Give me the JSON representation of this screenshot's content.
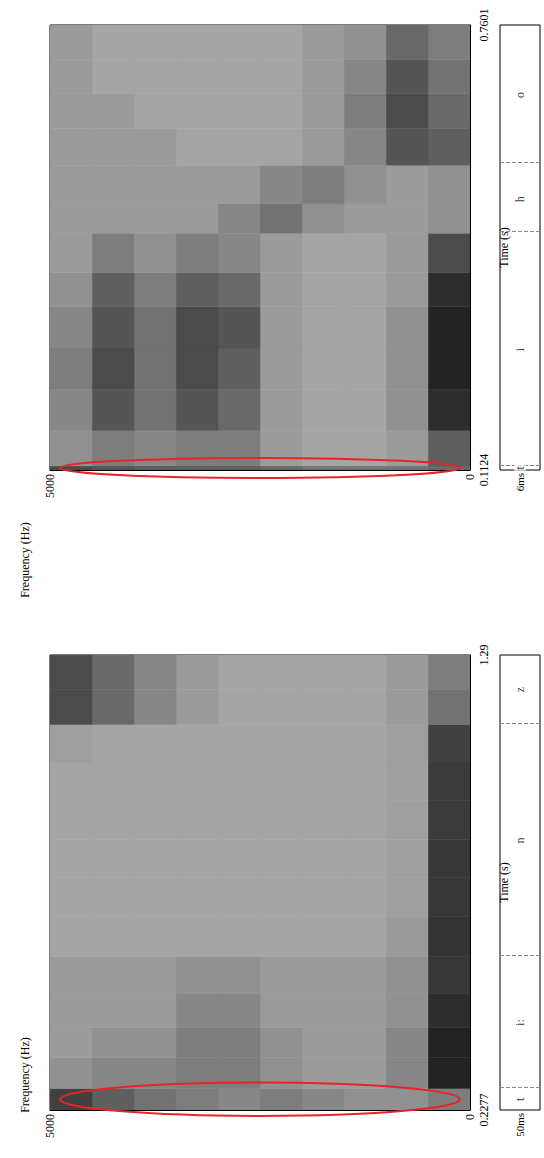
{
  "chart_data": [
    {
      "type": "spectrogram",
      "x_label": "Frequency (Hz)",
      "y_label": "Time (s)",
      "xlim": [
        5000,
        0
      ],
      "xticks": [
        5000,
        0
      ],
      "ylim": [
        0.1124,
        0.7601
      ],
      "yticks": [
        0.1124,
        0.7601
      ],
      "frequency_edges": [
        0,
        500,
        1000,
        1500,
        2000,
        2500,
        3000,
        3500,
        4000,
        4500,
        5000
      ],
      "time_edges": [
        0.1124,
        0.1184,
        0.17,
        0.23,
        0.29,
        0.35,
        0.4,
        0.457,
        0.5,
        0.556,
        0.61,
        0.66,
        0.71,
        0.7601
      ],
      "intensity_range": [
        0,
        100
      ],
      "intensity": [
        [
          55,
          50,
          50,
          50,
          55,
          60,
          60,
          60,
          65,
          70
        ],
        [
          60,
          30,
          25,
          25,
          30,
          45,
          45,
          40,
          45,
          35
        ],
        [
          85,
          35,
          25,
          25,
          30,
          55,
          65,
          50,
          65,
          40
        ],
        [
          90,
          35,
          25,
          25,
          30,
          60,
          70,
          50,
          70,
          45
        ],
        [
          90,
          35,
          25,
          25,
          30,
          65,
          70,
          50,
          65,
          40
        ],
        [
          85,
          30,
          25,
          25,
          30,
          55,
          60,
          45,
          60,
          35
        ],
        [
          70,
          30,
          25,
          25,
          30,
          40,
          45,
          35,
          45,
          30
        ],
        [
          35,
          30,
          30,
          35,
          50,
          40,
          30,
          30,
          30,
          30
        ],
        [
          35,
          30,
          35,
          45,
          40,
          30,
          30,
          30,
          30,
          30
        ],
        [
          60,
          65,
          40,
          30,
          25,
          25,
          25,
          30,
          30,
          30
        ],
        [
          55,
          70,
          45,
          30,
          25,
          25,
          25,
          25,
          30,
          30
        ],
        [
          50,
          65,
          40,
          30,
          25,
          25,
          25,
          25,
          25,
          30
        ],
        [
          45,
          55,
          35,
          30,
          25,
          25,
          25,
          25,
          25,
          30
        ]
      ],
      "segments": [
        {
          "label": "t",
          "start": 0.1124,
          "end": 0.1184,
          "duration_label": "6ms"
        },
        {
          "label": "i",
          "start": 0.1184,
          "end": 0.457
        },
        {
          "label": "h",
          "start": 0.457,
          "end": 0.556
        },
        {
          "label": "o",
          "start": 0.556,
          "end": 0.7601
        }
      ]
    },
    {
      "type": "spectrogram",
      "x_label": "Frequency (Hz)",
      "y_label": "Time (s)",
      "xlim": [
        5000,
        0
      ],
      "xticks": [
        5000,
        0
      ],
      "ylim": [
        0.2277,
        1.29
      ],
      "yticks": [
        0.2277,
        1.29
      ],
      "frequency_edges": [
        0,
        500,
        1000,
        1500,
        2000,
        2500,
        3000,
        3500,
        4000,
        4500,
        5000
      ],
      "time_edges": [
        0.2277,
        0.2777,
        0.35,
        0.42,
        0.5,
        0.586,
        0.68,
        0.77,
        0.86,
        0.95,
        1.04,
        1.128,
        1.21,
        1.29
      ],
      "intensity_range": [
        0,
        100
      ],
      "intensity": [
        [
          45,
          35,
          35,
          40,
          45,
          40,
          45,
          50,
          60,
          75
        ],
        [
          90,
          40,
          30,
          30,
          35,
          45,
          45,
          40,
          40,
          35
        ],
        [
          90,
          40,
          30,
          30,
          35,
          45,
          45,
          35,
          35,
          30
        ],
        [
          85,
          35,
          30,
          30,
          30,
          40,
          40,
          30,
          30,
          30
        ],
        [
          80,
          35,
          30,
          30,
          30,
          35,
          35,
          30,
          30,
          30
        ],
        [
          82,
          30,
          25,
          25,
          25,
          25,
          25,
          25,
          25,
          25
        ],
        [
          80,
          28,
          25,
          25,
          25,
          25,
          25,
          25,
          25,
          25
        ],
        [
          80,
          28,
          25,
          25,
          25,
          25,
          25,
          25,
          25,
          25
        ],
        [
          78,
          28,
          25,
          25,
          25,
          25,
          25,
          25,
          25,
          25
        ],
        [
          78,
          28,
          25,
          25,
          25,
          25,
          25,
          25,
          25,
          25
        ],
        [
          75,
          28,
          25,
          25,
          25,
          25,
          25,
          25,
          25,
          28
        ],
        [
          50,
          30,
          25,
          25,
          25,
          25,
          30,
          40,
          55,
          70
        ],
        [
          45,
          30,
          25,
          25,
          25,
          25,
          30,
          40,
          55,
          70
        ]
      ],
      "segments": [
        {
          "label": "t",
          "start": 0.2277,
          "end": 0.2777,
          "duration_label": "50ms"
        },
        {
          "label": "i:",
          "start": 0.2777,
          "end": 0.586
        },
        {
          "label": "n",
          "start": 0.586,
          "end": 1.128
        },
        {
          "label": "z",
          "start": 1.128,
          "end": 1.29
        }
      ]
    }
  ]
}
